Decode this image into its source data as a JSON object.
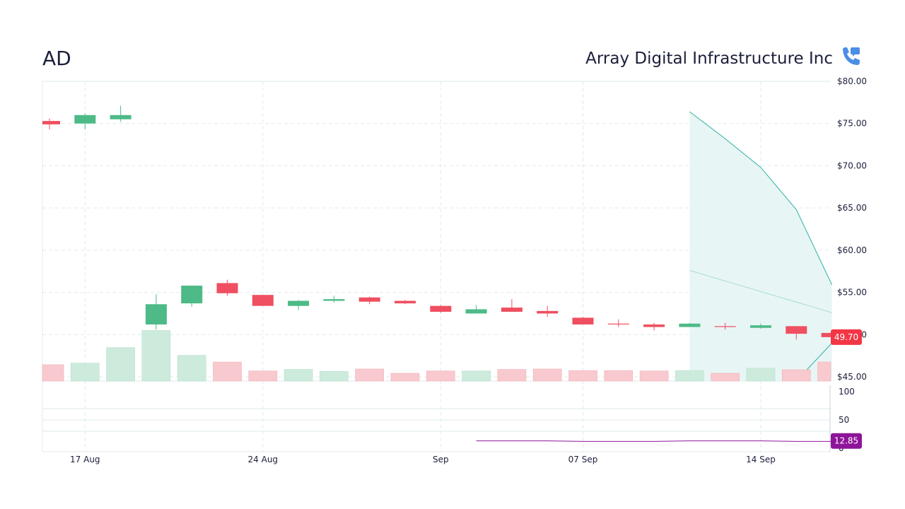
{
  "header": {
    "ticker": "AD",
    "company": "Array Digital Infrastructure Inc",
    "icon": "phone-chat-icon"
  },
  "colors": {
    "up": "#4dba87",
    "down": "#ef4f60",
    "up_volume": "#cdebdc",
    "down_volume": "#f8c9ce",
    "forecast_band": "#e8f5f5",
    "forecast_line": "#2bb3a3",
    "forecast_mid": "#a9dcd5",
    "last_price_badge": "#f23645",
    "rsi_line": "#8e1599",
    "rsi_badge": "#8e1599",
    "grid": "#dfe9ee"
  },
  "chart_data": {
    "type": "candlestick",
    "x_ticks": [
      {
        "label": "17 Aug",
        "index": 1
      },
      {
        "label": "24 Aug",
        "index": 6
      },
      {
        "label": "Sep",
        "index": 11
      },
      {
        "label": "07 Sep",
        "index": 15
      },
      {
        "label": "14 Sep",
        "index": 20
      }
    ],
    "price_axis": {
      "ticks": [
        "$80.00",
        "$75.00",
        "$70.00",
        "$65.00",
        "$60.00",
        "$55.00",
        "$50.00",
        "$45.00"
      ],
      "tick_values": [
        80,
        75,
        70,
        65,
        60,
        55,
        50,
        45
      ],
      "range": [
        44.5,
        80
      ]
    },
    "last_price": "49.70",
    "candles": [
      {
        "o": 75.3,
        "h": 75.6,
        "l": 74.3,
        "c": 74.9
      },
      {
        "o": 75.0,
        "h": 76.2,
        "l": 74.3,
        "c": 76.0
      },
      {
        "o": 75.5,
        "h": 77.1,
        "l": 75.2,
        "c": 76.0
      },
      {
        "o": 51.2,
        "h": 54.8,
        "l": 50.6,
        "c": 53.6
      },
      {
        "o": 53.7,
        "h": 55.8,
        "l": 53.3,
        "c": 55.8
      },
      {
        "o": 56.1,
        "h": 56.5,
        "l": 54.6,
        "c": 54.9
      },
      {
        "o": 54.7,
        "h": 54.7,
        "l": 53.4,
        "c": 53.4
      },
      {
        "o": 53.4,
        "h": 54.1,
        "l": 52.9,
        "c": 54.0
      },
      {
        "o": 54.0,
        "h": 54.6,
        "l": 53.8,
        "c": 54.2
      },
      {
        "o": 54.4,
        "h": 54.5,
        "l": 53.6,
        "c": 53.9
      },
      {
        "o": 54.0,
        "h": 54.1,
        "l": 53.6,
        "c": 53.7
      },
      {
        "o": 53.4,
        "h": 53.5,
        "l": 52.6,
        "c": 52.7
      },
      {
        "o": 52.5,
        "h": 53.5,
        "l": 52.5,
        "c": 53.0
      },
      {
        "o": 53.2,
        "h": 54.2,
        "l": 52.7,
        "c": 52.7
      },
      {
        "o": 52.8,
        "h": 53.4,
        "l": 52.1,
        "c": 52.5
      },
      {
        "o": 52.0,
        "h": 52.1,
        "l": 51.2,
        "c": 51.2
      },
      {
        "o": 51.3,
        "h": 51.8,
        "l": 50.9,
        "c": 51.2
      },
      {
        "o": 51.2,
        "h": 51.4,
        "l": 50.5,
        "c": 50.9
      },
      {
        "o": 50.9,
        "h": 51.4,
        "l": 50.9,
        "c": 51.3
      },
      {
        "o": 51.0,
        "h": 51.4,
        "l": 50.6,
        "c": 50.9
      },
      {
        "o": 50.8,
        "h": 51.3,
        "l": 50.7,
        "c": 51.1
      },
      {
        "o": 51.0,
        "h": 51.0,
        "l": 49.4,
        "c": 50.1
      },
      {
        "o": 50.2,
        "h": 50.4,
        "l": 49.7,
        "c": 49.7
      }
    ],
    "volume_relative": [
      0.42,
      0.46,
      0.86,
      1.3,
      0.66,
      0.49,
      0.26,
      0.3,
      0.25,
      0.31,
      0.2,
      0.26,
      0.26,
      0.3,
      0.31,
      0.27,
      0.27,
      0.26,
      0.27,
      0.2,
      0.33,
      0.29,
      0.49
    ],
    "volume_direction": [
      "down",
      "up",
      "up",
      "up",
      "up",
      "down",
      "down",
      "up",
      "up",
      "down",
      "down",
      "down",
      "up",
      "down",
      "down",
      "down",
      "down",
      "down",
      "up",
      "down",
      "up",
      "down",
      "down"
    ],
    "forecast": {
      "start_index": 18,
      "upper": [
        {
          "i": 18,
          "v": 76.4
        },
        {
          "i": 19,
          "v": 73.2
        },
        {
          "i": 20,
          "v": 69.8
        },
        {
          "i": 21,
          "v": 64.8
        },
        {
          "i": 22,
          "v": 55.9
        }
      ],
      "middle": [
        {
          "i": 18,
          "v": 57.6
        },
        {
          "i": 22,
          "v": 52.6
        }
      ],
      "lower": [
        {
          "i": 21,
          "v": 44.5
        },
        {
          "i": 22,
          "v": 49.0
        }
      ]
    },
    "rsi": {
      "ticks": [
        "100",
        "50",
        "0"
      ],
      "tick_values": [
        100,
        50,
        0
      ],
      "range": [
        0,
        100
      ],
      "last_value": "12.85",
      "values": [
        {
          "i": 12,
          "v": 13
        },
        {
          "i": 14,
          "v": 13
        },
        {
          "i": 15,
          "v": 12
        },
        {
          "i": 17,
          "v": 12
        },
        {
          "i": 18,
          "v": 13
        },
        {
          "i": 20,
          "v": 13
        },
        {
          "i": 21,
          "v": 12
        },
        {
          "i": 22,
          "v": 12
        }
      ]
    }
  }
}
